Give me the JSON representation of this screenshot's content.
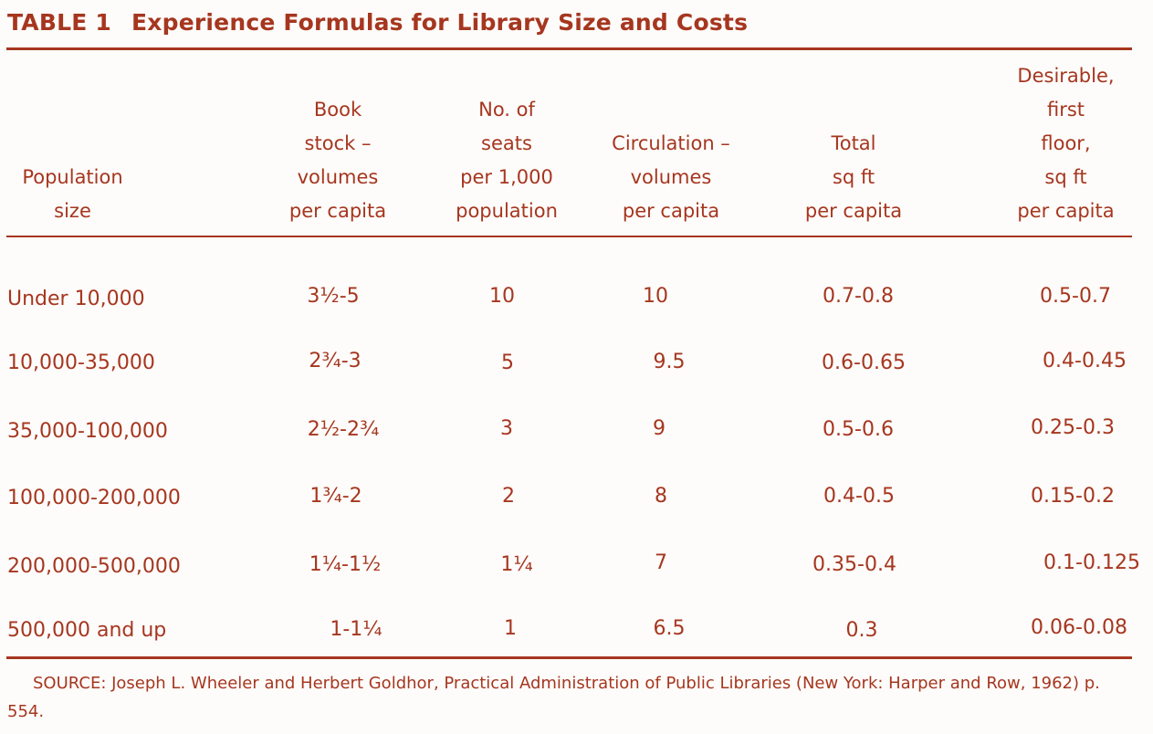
{
  "table": {
    "label": "TABLE 1",
    "title": "Experience Formulas for Library Size and Costs",
    "headers": [
      [
        "Population",
        "size"
      ],
      [
        "Book",
        "stock –",
        "volumes",
        "per capita"
      ],
      [
        "No. of",
        "seats",
        "per 1,000",
        "population"
      ],
      [
        "Circulation –",
        "volumes",
        "per capita"
      ],
      [
        "Total",
        "sq ft",
        "per capita"
      ],
      [
        "Desirable,",
        "first",
        "floor,",
        "sq ft",
        "per capita"
      ]
    ],
    "rows": [
      [
        "Under 10,000",
        "3½-5",
        "10",
        "10",
        "0.7-0.8",
        "0.5-0.7"
      ],
      [
        "10,000-35,000",
        "2¾-3",
        "5",
        "9.5",
        "0.6-0.65",
        "0.4-0.45"
      ],
      [
        "35,000-100,000",
        "2½-2¾",
        "3",
        "9",
        "0.5-0.6",
        "0.25-0.3"
      ],
      [
        "100,000-200,000",
        "1¾-2",
        "2",
        "8",
        "0.4-0.5",
        "0.15-0.2"
      ],
      [
        "200,000-500,000",
        "1¼-1½",
        "1¼",
        "7",
        "0.35-0.4",
        "0.1-0.125"
      ],
      [
        "500,000 and up",
        "1-1¼",
        "1",
        "6.5",
        "0.3",
        "0.06-0.08"
      ]
    ],
    "source": "SOURCE: Joseph L. Wheeler and Herbert Goldhor, Practical Administration of Public Libraries (New York: Harper and Row, 1962) p. 554."
  }
}
